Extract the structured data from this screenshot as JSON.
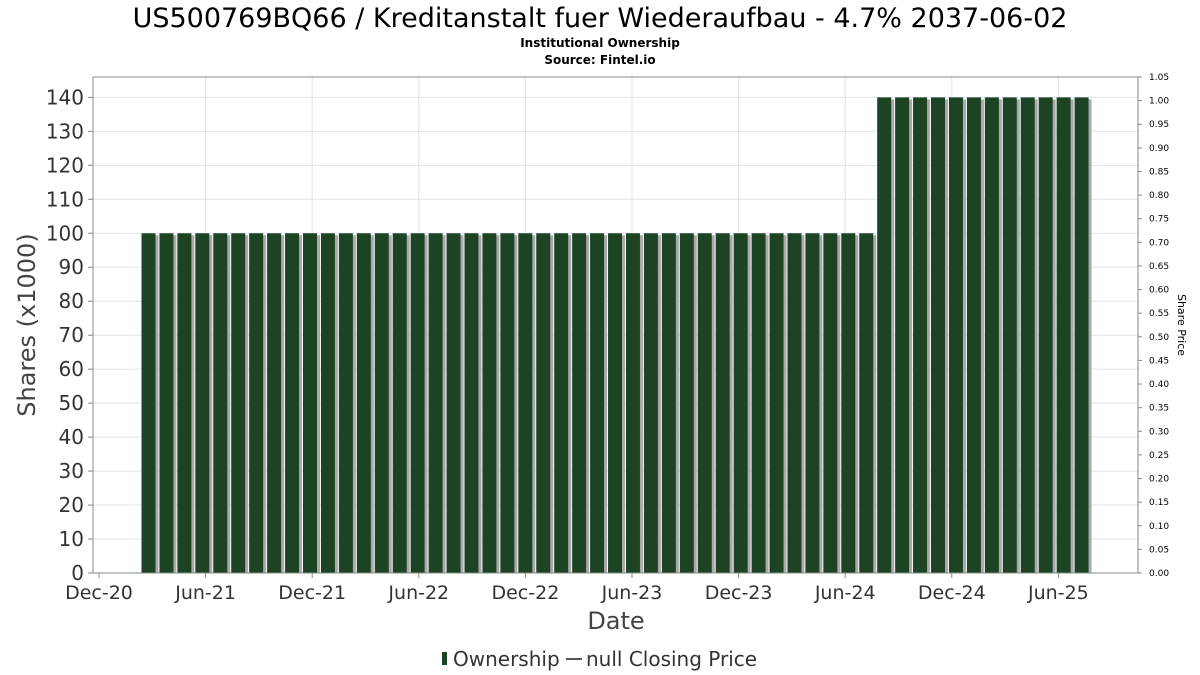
{
  "chart_data": {
    "type": "bar",
    "title": "US500769BQ66 / Kreditanstalt fuer Wiederaufbau - 4.7% 2037-06-02",
    "subtitle": "Institutional Ownership",
    "source": "Source: Fintel.io",
    "xlabel": "Date",
    "ylabel": "Shares (x1000)",
    "y2label": "Share Price",
    "ylim": [
      0,
      146
    ],
    "y_ticks": [
      0,
      10,
      20,
      30,
      40,
      50,
      60,
      70,
      80,
      90,
      100,
      110,
      120,
      130,
      140
    ],
    "y2lim": [
      0,
      1.05
    ],
    "y2_ticks": [
      "0.00",
      "0.05",
      "0.10",
      "0.15",
      "0.20",
      "0.25",
      "0.30",
      "0.35",
      "0.40",
      "0.45",
      "0.50",
      "0.55",
      "0.60",
      "0.65",
      "0.70",
      "0.75",
      "0.80",
      "0.85",
      "0.90",
      "0.95",
      "1.00",
      "1.05"
    ],
    "x_ticks": [
      "Dec-20",
      "Jun-21",
      "Dec-21",
      "Jun-22",
      "Dec-22",
      "Jun-23",
      "Dec-23",
      "Jun-24",
      "Dec-24",
      "Jun-25"
    ],
    "grid": true,
    "legend_position": "bottom-center",
    "series": [
      {
        "name": "Ownership",
        "color": "#1c4424",
        "values": [
          100,
          100,
          100,
          100,
          100,
          100,
          100,
          100,
          100,
          100,
          100,
          100,
          100,
          100,
          100,
          100,
          100,
          100,
          100,
          100,
          100,
          100,
          100,
          100,
          100,
          100,
          100,
          100,
          100,
          100,
          100,
          100,
          100,
          100,
          100,
          100,
          100,
          100,
          100,
          100,
          100,
          140,
          140,
          140,
          140,
          140,
          140,
          140,
          140,
          140,
          140,
          140,
          140
        ]
      }
    ],
    "legend": [
      {
        "name": "Ownership",
        "color": "#1c4424",
        "symbol": "bar"
      },
      {
        "name": "null Closing Price",
        "color": "#555555",
        "symbol": "line"
      }
    ]
  }
}
